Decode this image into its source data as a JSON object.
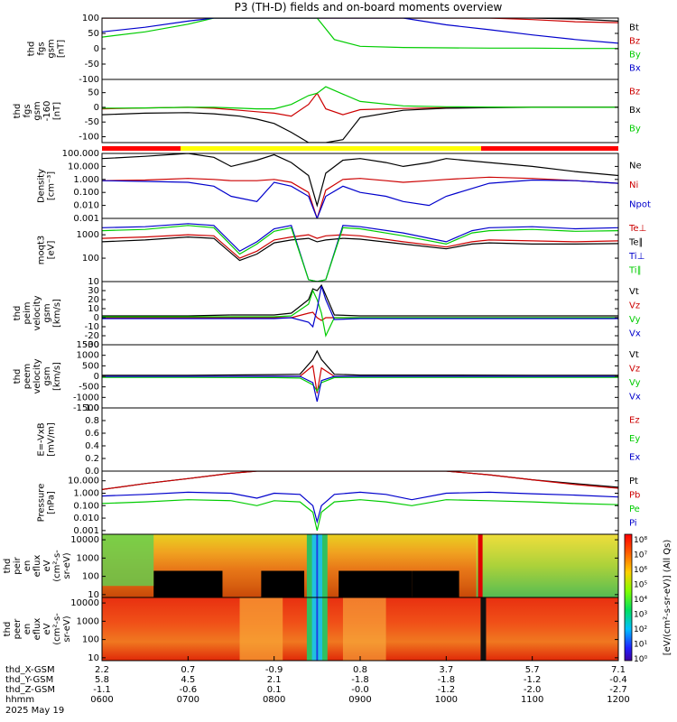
{
  "title": "P3 (TH-D) fields and on-board moments overview",
  "footer": {
    "rows": [
      {
        "label": "thd_X-GSM",
        "values": [
          "2.2",
          "0.7",
          "-0.9",
          "0.8",
          "3.7",
          "5.7",
          "7.1"
        ]
      },
      {
        "label": "thd_Y-GSM",
        "values": [
          "5.8",
          "4.5",
          "2.1",
          "-1.8",
          "-1.8",
          "-1.2",
          "-0.4"
        ]
      },
      {
        "label": "thd_Z-GSM",
        "values": [
          "-1.1",
          "-0.6",
          "0.1",
          "-0.0",
          "-1.2",
          "-2.0",
          "-2.7"
        ]
      },
      {
        "label": "hhmm",
        "values": [
          "0600",
          "0700",
          "0800",
          "0900",
          "1000",
          "1100",
          "1200"
        ]
      }
    ],
    "date": "2025 May 19"
  },
  "colorbar": {
    "ticks": [
      "10⁸",
      "10⁷",
      "10⁶",
      "10⁵",
      "10⁴",
      "10³",
      "10²",
      "10¹",
      "10⁰"
    ],
    "label": "[eV/(cm²-s-sr-eV)] (All Qs)"
  },
  "chart_data": [
    {
      "type": "line",
      "panel": "fgs_gsm",
      "ylabel": [
        "thd",
        "fgs",
        "gsm",
        "[nT]"
      ],
      "ylim": [
        -100,
        100
      ],
      "yticks": [
        "100",
        "50",
        "0",
        "-50",
        "-100"
      ],
      "series": [
        {
          "name": "Bt",
          "color": "#000000"
        },
        {
          "name": "Bz",
          "color": "#cc0000"
        },
        {
          "name": "By",
          "color": "#00cc00"
        },
        {
          "name": "Bx",
          "color": "#0000cc"
        }
      ],
      "x": [
        6.0,
        6.5,
        7.0,
        7.3,
        7.6,
        7.8,
        8.0,
        8.2,
        8.5,
        8.7,
        9.0,
        9.5,
        10.0,
        10.5,
        11.0,
        11.5,
        12.0
      ],
      "data": {
        "Bt": [
          100,
          100,
          100,
          100,
          100,
          100,
          100,
          100,
          100,
          100,
          100,
          100,
          100,
          100,
          100,
          97,
          90
        ],
        "Bz": [
          100,
          100,
          100,
          100,
          100,
          100,
          100,
          100,
          100,
          100,
          100,
          100,
          100,
          100,
          95,
          88,
          85
        ],
        "By": [
          38,
          55,
          80,
          100,
          100,
          100,
          100,
          100,
          100,
          30,
          8,
          4,
          3,
          2,
          2,
          1,
          1
        ],
        "Bx": [
          55,
          70,
          90,
          100,
          100,
          100,
          100,
          100,
          100,
          100,
          100,
          100,
          78,
          62,
          45,
          30,
          18
        ]
      }
    },
    {
      "type": "line",
      "panel": "fgs_gsm_zoom",
      "ylabel": [
        "thd",
        "fgs",
        "gsm",
        "-160",
        "[nT]"
      ],
      "ylim": [
        -120,
        95
      ],
      "yticks": [
        "50",
        "0",
        "-50",
        "-100"
      ],
      "series": [
        {
          "name": "Bz",
          "color": "#cc0000"
        },
        {
          "name": "Bx",
          "color": "#000000"
        },
        {
          "name": "By",
          "color": "#00cc00"
        }
      ],
      "x": [
        6.0,
        6.5,
        7.0,
        7.3,
        7.6,
        7.8,
        8.0,
        8.2,
        8.4,
        8.5,
        8.6,
        8.8,
        9.0,
        9.5,
        10.0,
        10.5,
        11.0,
        11.5,
        12.0
      ],
      "data": {
        "Bz": [
          -5,
          -2,
          0,
          -3,
          -10,
          -15,
          -20,
          -30,
          10,
          48,
          -5,
          -25,
          -8,
          -4,
          -1,
          0,
          0,
          0,
          0
        ],
        "Bx": [
          -25,
          -20,
          -18,
          -22,
          -30,
          -40,
          -55,
          -85,
          -120,
          -120,
          -120,
          -110,
          -35,
          -10,
          -3,
          -1,
          0,
          0,
          0
        ],
        "By": [
          -3,
          -2,
          0,
          0,
          -3,
          -5,
          -5,
          10,
          40,
          48,
          70,
          45,
          20,
          5,
          2,
          1,
          0,
          0,
          0
        ]
      }
    },
    {
      "type": "line",
      "panel": "density",
      "ylabel": [
        "Density",
        "[cm⁻³]"
      ],
      "scale": "log",
      "ylim": [
        0.001,
        100
      ],
      "yticks": [
        "100.000",
        "10.000",
        "1.000",
        "0.100",
        "0.010",
        "0.001"
      ],
      "series": [
        {
          "name": "Ne",
          "color": "#000000"
        },
        {
          "name": "Ni",
          "color": "#cc0000"
        },
        {
          "name": "Npot",
          "color": "#0000cc"
        }
      ],
      "x": [
        6.0,
        6.5,
        7.0,
        7.3,
        7.5,
        7.8,
        8.0,
        8.2,
        8.4,
        8.5,
        8.6,
        8.8,
        9.0,
        9.3,
        9.5,
        9.8,
        10.0,
        10.5,
        11.0,
        11.5,
        12.0
      ],
      "data": {
        "Ne": [
          40,
          60,
          100,
          50,
          10,
          30,
          80,
          20,
          2,
          0.01,
          3,
          30,
          40,
          20,
          10,
          20,
          40,
          20,
          10,
          4,
          2
        ],
        "Ni": [
          0.8,
          0.9,
          1.2,
          1.0,
          0.8,
          0.8,
          1.0,
          0.6,
          0.1,
          0.001,
          0.15,
          1.0,
          1.2,
          0.8,
          0.6,
          0.8,
          1.0,
          1.5,
          1.2,
          0.8,
          0.5
        ],
        "Npot": [
          0.8,
          0.7,
          0.6,
          0.3,
          0.05,
          0.02,
          0.6,
          0.3,
          0.05,
          0.001,
          0.05,
          0.3,
          0.1,
          0.05,
          0.02,
          0.01,
          0.05,
          0.5,
          0.9,
          0.8,
          0.5
        ]
      }
    },
    {
      "type": "line",
      "panel": "temperature",
      "ylabel": [
        "moqt3",
        "[eV]"
      ],
      "scale": "log",
      "ylim": [
        10,
        5000
      ],
      "yticks": [
        "1000",
        "100",
        "10"
      ],
      "series": [
        {
          "name": "Te⊥",
          "color": "#cc0000"
        },
        {
          "name": "Te∥",
          "color": "#000000"
        },
        {
          "name": "Ti⊥",
          "color": "#0000cc"
        },
        {
          "name": "Ti∥",
          "color": "#00cc00"
        }
      ],
      "x": [
        6.0,
        6.5,
        7.0,
        7.3,
        7.6,
        7.8,
        8.0,
        8.2,
        8.4,
        8.5,
        8.6,
        8.8,
        9.0,
        9.5,
        10.0,
        10.3,
        10.5,
        11.0,
        11.5,
        12.0
      ],
      "data": {
        "Te⊥": [
          700,
          800,
          1000,
          900,
          100,
          200,
          600,
          800,
          1000,
          700,
          900,
          1000,
          900,
          500,
          300,
          500,
          600,
          550,
          500,
          550
        ],
        "Te∥": [
          500,
          600,
          800,
          700,
          80,
          150,
          450,
          600,
          700,
          500,
          600,
          700,
          650,
          400,
          250,
          400,
          450,
          400,
          400,
          420
        ],
        "Ti⊥": [
          2000,
          2200,
          3000,
          2500,
          200,
          500,
          1800,
          2500,
          12,
          10,
          12,
          2500,
          2200,
          1200,
          500,
          1500,
          2000,
          2200,
          1800,
          2000
        ],
        "Ti∥": [
          1500,
          1700,
          2500,
          2000,
          150,
          400,
          1400,
          2000,
          12,
          10,
          12,
          2000,
          1800,
          900,
          400,
          1200,
          1500,
          1700,
          1400,
          1500
        ]
      }
    },
    {
      "type": "line",
      "panel": "peim_velocity",
      "ylabel": [
        "thd",
        "peim",
        "velocity",
        "gsm",
        "[km/s]"
      ],
      "ylim": [
        -30,
        40
      ],
      "yticks": [
        "30",
        "20",
        "10",
        "0",
        "-10",
        "-20",
        "-30"
      ],
      "series": [
        {
          "name": "Vt",
          "color": "#000000"
        },
        {
          "name": "Vz",
          "color": "#cc0000"
        },
        {
          "name": "Vy",
          "color": "#00cc00"
        },
        {
          "name": "Vx",
          "color": "#0000cc"
        }
      ],
      "x": [
        6.0,
        6.5,
        7.0,
        7.5,
        8.0,
        8.2,
        8.4,
        8.45,
        8.5,
        8.55,
        8.6,
        8.7,
        9.0,
        10.0,
        11.0,
        12.0
      ],
      "data": {
        "Vt": [
          2,
          2,
          2,
          3,
          3,
          5,
          20,
          32,
          30,
          36,
          25,
          3,
          2,
          2,
          2,
          2
        ],
        "Vz": [
          0,
          0,
          0,
          0,
          0,
          0,
          5,
          6,
          0,
          -3,
          0,
          0,
          0,
          0,
          0,
          0
        ],
        "Vy": [
          1,
          1,
          1,
          1,
          1,
          2,
          15,
          30,
          20,
          5,
          -20,
          0,
          0,
          0,
          0,
          0
        ],
        "Vx": [
          -1,
          -1,
          -1,
          -1,
          -1,
          0,
          -5,
          -10,
          10,
          35,
          20,
          -2,
          -1,
          -1,
          -1,
          -1
        ]
      }
    },
    {
      "type": "line",
      "panel": "peem_velocity",
      "ylabel": [
        "thd",
        "peem",
        "velocity",
        "gsm",
        "[km/s]"
      ],
      "ylim": [
        -1500,
        1500
      ],
      "yticks": [
        "1500",
        "1000",
        "500",
        "0",
        "-500",
        "-1000",
        "-1500"
      ],
      "series": [
        {
          "name": "Vt",
          "color": "#000000"
        },
        {
          "name": "Vz",
          "color": "#cc0000"
        },
        {
          "name": "Vy",
          "color": "#00cc00"
        },
        {
          "name": "Vx",
          "color": "#0000cc"
        }
      ],
      "x": [
        6.0,
        7.0,
        8.0,
        8.3,
        8.45,
        8.5,
        8.55,
        8.7,
        9.0,
        10.0,
        11.0,
        12.0
      ],
      "data": {
        "Vt": [
          50,
          50,
          80,
          100,
          800,
          1200,
          800,
          100,
          60,
          60,
          50,
          50
        ],
        "Vz": [
          0,
          0,
          0,
          0,
          500,
          -800,
          400,
          0,
          0,
          0,
          0,
          0
        ],
        "Vy": [
          -50,
          -50,
          -60,
          -80,
          -400,
          -700,
          -300,
          -60,
          -50,
          -50,
          -50,
          -50
        ],
        "Vx": [
          0,
          0,
          0,
          0,
          -300,
          -1200,
          -200,
          0,
          0,
          0,
          0,
          0
        ]
      }
    },
    {
      "type": "line",
      "panel": "efield",
      "ylabel": [
        "E=-VxB",
        "[mV/m]"
      ],
      "ylim": [
        0,
        1
      ],
      "yticks": [
        "1.0",
        "0.8",
        "0.6",
        "0.4",
        "0.2",
        "0.0"
      ],
      "series": [
        {
          "name": "Ez",
          "color": "#cc0000"
        },
        {
          "name": "Ey",
          "color": "#00cc00"
        },
        {
          "name": "Ex",
          "color": "#0000cc"
        }
      ]
    },
    {
      "type": "line",
      "panel": "pressure",
      "ylabel": [
        "Pressure",
        "[nPa]"
      ],
      "scale": "log",
      "ylim": [
        0.0005,
        60
      ],
      "yticks": [
        "10.000",
        "1.000",
        "0.100",
        "0.010",
        "0.001"
      ],
      "series": [
        {
          "name": "Pt",
          "color": "#000000"
        },
        {
          "name": "Pb",
          "color": "#cc0000"
        },
        {
          "name": "Pe",
          "color": "#00cc00"
        },
        {
          "name": "Pi",
          "color": "#0000cc"
        }
      ],
      "x": [
        6.0,
        6.5,
        7.0,
        7.5,
        7.8,
        8.0,
        8.3,
        8.45,
        8.5,
        8.55,
        8.7,
        9.0,
        9.3,
        9.6,
        10.0,
        10.5,
        11.0,
        11.5,
        12.0
      ],
      "data": {
        "Pt": [
          2,
          6,
          15,
          40,
          60,
          60,
          60,
          60,
          60,
          60,
          60,
          60,
          60,
          60,
          60,
          30,
          12,
          6,
          3
        ],
        "Pb": [
          2,
          6,
          15,
          40,
          60,
          60,
          60,
          60,
          60,
          60,
          60,
          60,
          60,
          60,
          60,
          30,
          12,
          5,
          2.5
        ],
        "Pe": [
          0.15,
          0.2,
          0.3,
          0.25,
          0.1,
          0.25,
          0.2,
          0.03,
          0.001,
          0.03,
          0.2,
          0.3,
          0.2,
          0.1,
          0.3,
          0.25,
          0.2,
          0.15,
          0.12
        ],
        "Pi": [
          0.6,
          0.8,
          1.2,
          1.0,
          0.4,
          1.0,
          0.8,
          0.1,
          0.005,
          0.1,
          0.8,
          1.2,
          0.8,
          0.3,
          1.0,
          1.2,
          0.9,
          0.7,
          0.5
        ]
      }
    },
    {
      "type": "heatmap",
      "panel": "peir_en_eflux",
      "ylabel": [
        "thd",
        "peir",
        "en",
        "eflux",
        "eV",
        "(cm²-s-",
        "sr-eV)"
      ],
      "scale": "log",
      "ylim": [
        7,
        20000
      ],
      "yticks": [
        "10000",
        "1000",
        "100",
        "10"
      ]
    },
    {
      "type": "heatmap",
      "panel": "peer_en_eflux",
      "ylabel": [
        "thd",
        "peer",
        "en",
        "eflux",
        "eV",
        "(cm²-s-",
        "sr-eV)"
      ],
      "scale": "log",
      "ylim": [
        7,
        20000
      ],
      "yticks": [
        "10000",
        "1000",
        "100",
        "10"
      ]
    }
  ]
}
